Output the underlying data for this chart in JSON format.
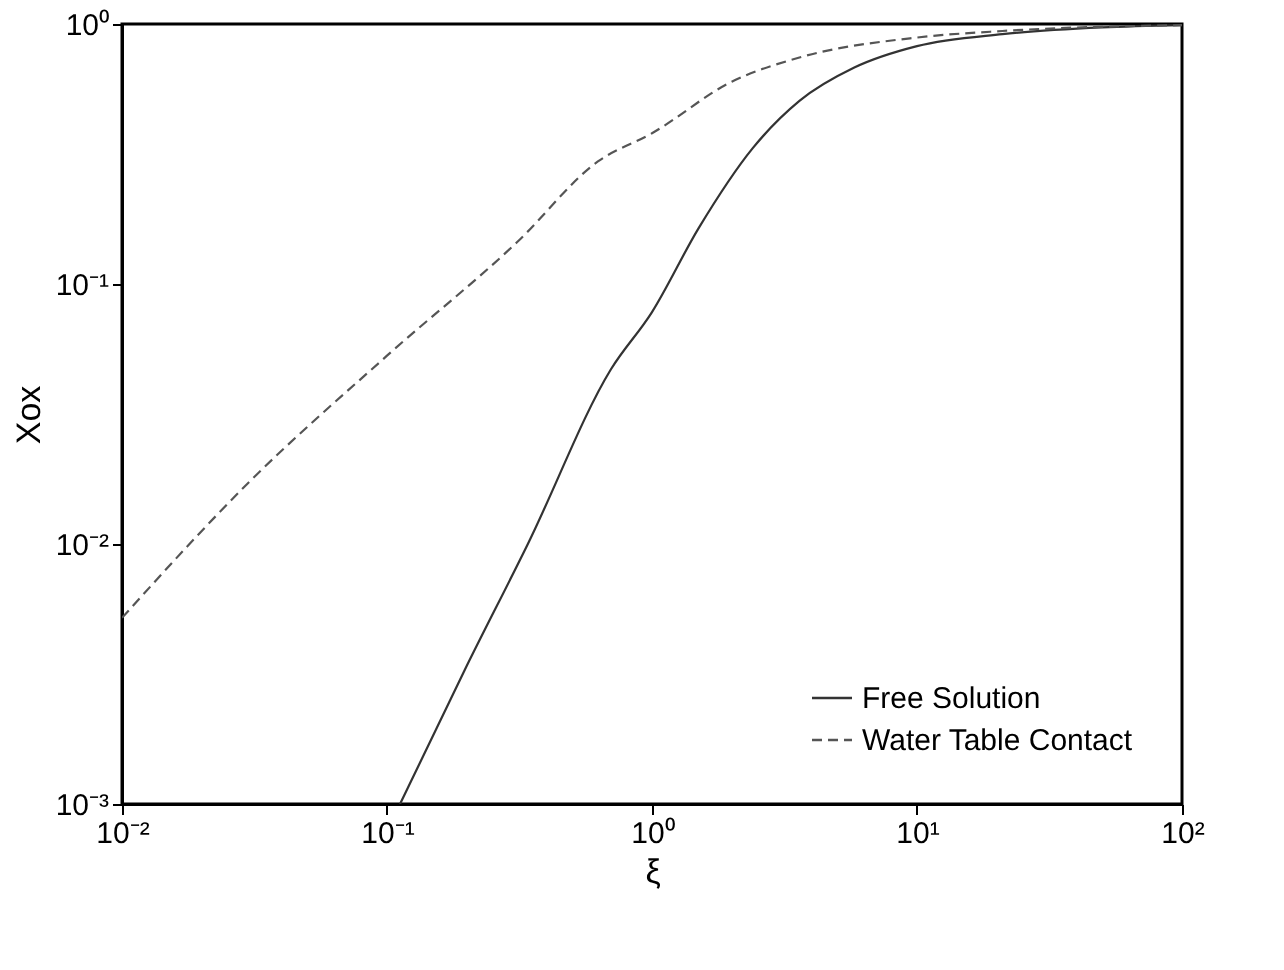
{
  "chart_data": {
    "type": "line",
    "xlabel": "ξ",
    "ylabel": "Xox",
    "log": "xy",
    "grid": false,
    "legend": "bottom right",
    "marker": "none",
    "xlim": [
      0.01,
      100
    ],
    "ylim": [
      0.001,
      1
    ],
    "xticks": [
      {
        "value": 0.01,
        "label": "10⁻²"
      },
      {
        "value": 0.1,
        "label": "10⁻¹"
      },
      {
        "value": 1,
        "label": "10⁰"
      },
      {
        "value": 10,
        "label": "10¹"
      },
      {
        "value": 100,
        "label": "10²"
      }
    ],
    "yticks": [
      {
        "value": 0.001,
        "label": "10⁻³"
      },
      {
        "value": 0.01,
        "label": "10⁻²"
      },
      {
        "value": 0.1,
        "label": "10⁻¹"
      },
      {
        "value": 1,
        "label": "10⁰"
      }
    ],
    "series": [
      {
        "name": "Free Solution",
        "color": "#333333",
        "line_style": "solid",
        "x": [
          0.112,
          0.2,
          0.34,
          0.7,
          1.0,
          1.5,
          2.4,
          3.6,
          5.8,
          10,
          21,
          50,
          100
        ],
        "values": [
          0.001,
          0.0034,
          0.01,
          0.047,
          0.078,
          0.164,
          0.333,
          0.506,
          0.68,
          0.822,
          0.914,
          0.97,
          0.99
        ]
      },
      {
        "name": "Water Table Contact",
        "color": "#555555",
        "line_style": "dashed",
        "x": [
          0.01,
          0.03,
          0.1,
          0.31,
          0.625,
          1.0,
          2.0,
          3.6,
          10,
          21,
          100
        ],
        "values": [
          0.0052,
          0.0172,
          0.053,
          0.145,
          0.296,
          0.38,
          0.6,
          0.743,
          0.887,
          0.94,
          0.99
        ]
      }
    ]
  }
}
